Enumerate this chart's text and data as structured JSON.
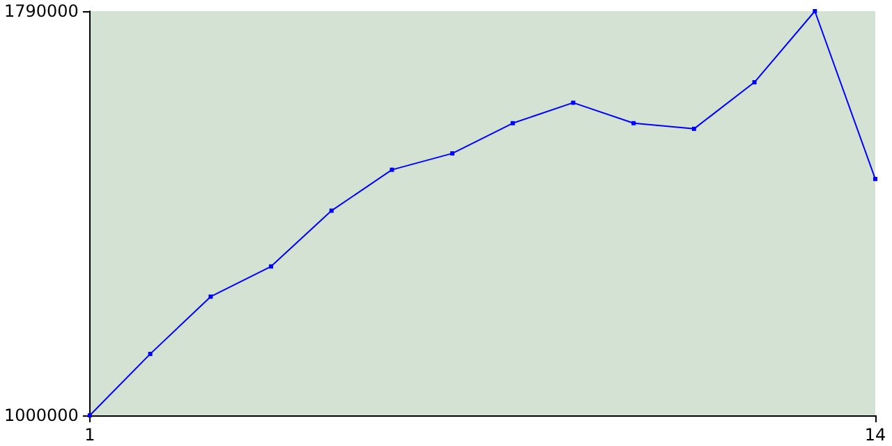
{
  "chart_data": {
    "type": "line",
    "x": [
      1,
      2,
      3,
      4,
      5,
      6,
      7,
      8,
      9,
      10,
      11,
      12,
      13,
      14
    ],
    "values": [
      1000000,
      1120000,
      1232000,
      1291000,
      1400000,
      1480000,
      1512000,
      1571000,
      1611000,
      1571000,
      1560000,
      1651000,
      1790000,
      1462000
    ],
    "color": "#0000ff",
    "xlim": [
      1,
      14
    ],
    "xticks": [
      1,
      14
    ],
    "ylim": [
      1000000,
      1790000
    ],
    "yticks": [
      1000000,
      1790000
    ],
    "grid": false,
    "marker": "square",
    "line_style": "solid"
  }
}
